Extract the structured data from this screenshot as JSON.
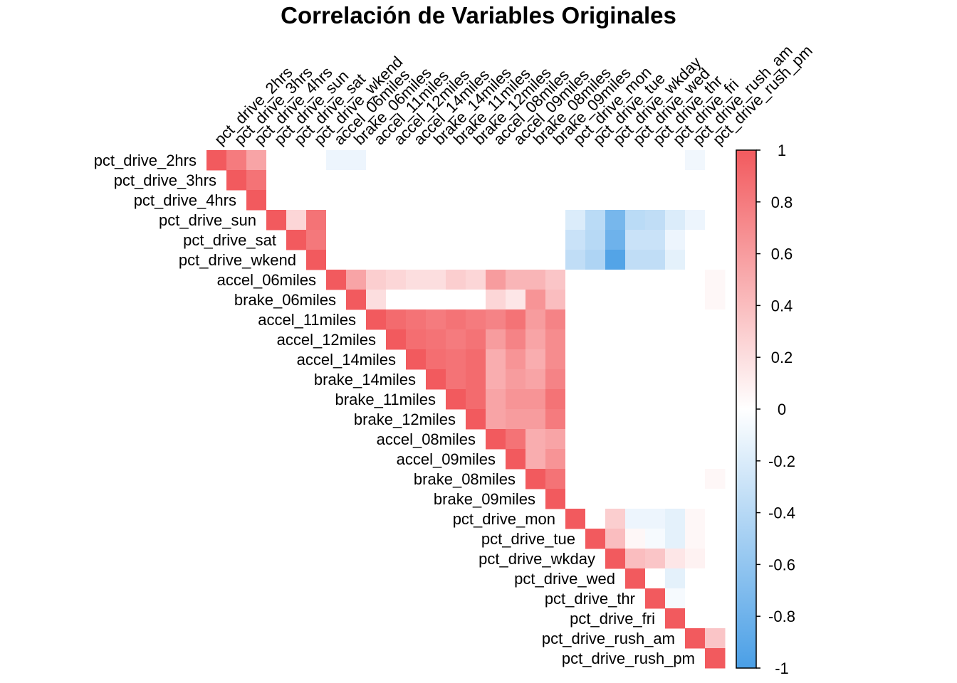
{
  "chart_data": {
    "type": "heatmap",
    "subtype": "correlation-upper-triangle",
    "title": "Correlación de Variables Originales",
    "variables": [
      "pct_drive_2hrs",
      "pct_drive_3hrs",
      "pct_drive_4hrs",
      "pct_drive_sun",
      "pct_drive_sat",
      "pct_drive_wkend",
      "accel_06miles",
      "brake_06miles",
      "accel_11miles",
      "accel_12miles",
      "accel_14miles",
      "brake_14miles",
      "brake_11miles",
      "brake_12miles",
      "accel_08miles",
      "accel_09miles",
      "brake_08miles",
      "brake_09miles",
      "pct_drive_mon",
      "pct_drive_tue",
      "pct_drive_wkday",
      "pct_drive_wed",
      "pct_drive_thr",
      "pct_drive_fri",
      "pct_drive_rush_am",
      "pct_drive_rush_pm"
    ],
    "value_range": [
      -1,
      1
    ],
    "colorbar": {
      "ticks": [
        1,
        0.8,
        0.6,
        0.4,
        0.2,
        0,
        -0.2,
        -0.4,
        -0.6,
        -0.8,
        -1
      ],
      "tick_labels": [
        "1",
        "0.8",
        "0.6",
        "0.4",
        "0.2",
        "0",
        "-0.2",
        "-0.4",
        "-0.6",
        "-0.8",
        "-1"
      ],
      "low_color": "#4A9FE6",
      "mid_color": "#FFFFFF",
      "high_color": "#F25A5E",
      "position": "right"
    },
    "notable_correlations": [
      {
        "row": "pct_drive_2hrs",
        "col": "pct_drive_3hrs",
        "value": 0.8
      },
      {
        "row": "pct_drive_2hrs",
        "col": "pct_drive_4hrs",
        "value": 0.55
      },
      {
        "row": "pct_drive_3hrs",
        "col": "pct_drive_4hrs",
        "value": 0.85
      },
      {
        "row": "pct_drive_2hrs",
        "col": "accel_06miles",
        "value": -0.1
      },
      {
        "row": "pct_drive_2hrs",
        "col": "brake_06miles",
        "value": -0.1
      },
      {
        "row": "pct_drive_2hrs",
        "col": "pct_drive_rush_am",
        "value": -0.08
      },
      {
        "row": "pct_drive_sun",
        "col": "pct_drive_sat",
        "value": 0.25
      },
      {
        "row": "pct_drive_sun",
        "col": "pct_drive_wkend",
        "value": 0.85
      },
      {
        "row": "pct_drive_sat",
        "col": "pct_drive_wkend",
        "value": 0.82
      },
      {
        "row": "pct_drive_sun",
        "col": "pct_drive_mon",
        "value": -0.2
      },
      {
        "row": "pct_drive_sun",
        "col": "pct_drive_tue",
        "value": -0.38
      },
      {
        "row": "pct_drive_sun",
        "col": "pct_drive_wkday",
        "value": -0.75
      },
      {
        "row": "pct_drive_sun",
        "col": "pct_drive_wed",
        "value": -0.38
      },
      {
        "row": "pct_drive_sun",
        "col": "pct_drive_thr",
        "value": -0.35
      },
      {
        "row": "pct_drive_sun",
        "col": "pct_drive_fri",
        "value": -0.2
      },
      {
        "row": "pct_drive_sun",
        "col": "pct_drive_rush_am",
        "value": -0.1
      },
      {
        "row": "pct_drive_sat",
        "col": "pct_drive_mon",
        "value": -0.3
      },
      {
        "row": "pct_drive_sat",
        "col": "pct_drive_tue",
        "value": -0.4
      },
      {
        "row": "pct_drive_sat",
        "col": "pct_drive_wkday",
        "value": -0.8
      },
      {
        "row": "pct_drive_sat",
        "col": "pct_drive_wed",
        "value": -0.3
      },
      {
        "row": "pct_drive_sat",
        "col": "pct_drive_thr",
        "value": -0.3
      },
      {
        "row": "pct_drive_sat",
        "col": "pct_drive_fri",
        "value": -0.1
      },
      {
        "row": "pct_drive_wkend",
        "col": "pct_drive_mon",
        "value": -0.35
      },
      {
        "row": "pct_drive_wkend",
        "col": "pct_drive_tue",
        "value": -0.45
      },
      {
        "row": "pct_drive_wkend",
        "col": "pct_drive_wkday",
        "value": -0.95
      },
      {
        "row": "pct_drive_wkend",
        "col": "pct_drive_wed",
        "value": -0.35
      },
      {
        "row": "pct_drive_wkend",
        "col": "pct_drive_thr",
        "value": -0.35
      },
      {
        "row": "pct_drive_wkend",
        "col": "pct_drive_fri",
        "value": -0.15
      },
      {
        "row": "accel_06miles",
        "col": "brake_06miles",
        "value": 0.55
      },
      {
        "row": "accel_06miles",
        "col": "accel_11miles",
        "value": 0.3
      },
      {
        "row": "accel_06miles",
        "col": "accel_12miles",
        "value": 0.25
      },
      {
        "row": "accel_06miles",
        "col": "accel_14miles",
        "value": 0.2
      },
      {
        "row": "accel_06miles",
        "col": "brake_14miles",
        "value": 0.2
      },
      {
        "row": "accel_06miles",
        "col": "brake_11miles",
        "value": 0.3
      },
      {
        "row": "accel_06miles",
        "col": "brake_12miles",
        "value": 0.25
      },
      {
        "row": "accel_06miles",
        "col": "accel_08miles",
        "value": 0.6
      },
      {
        "row": "accel_06miles",
        "col": "accel_09miles",
        "value": 0.45
      },
      {
        "row": "accel_06miles",
        "col": "brake_08miles",
        "value": 0.45
      },
      {
        "row": "accel_06miles",
        "col": "brake_09miles",
        "value": 0.35
      },
      {
        "row": "brake_06miles",
        "col": "accel_11miles",
        "value": 0.2
      },
      {
        "row": "brake_06miles",
        "col": "accel_08miles",
        "value": 0.25
      },
      {
        "row": "brake_06miles",
        "col": "accel_09miles",
        "value": 0.15
      },
      {
        "row": "brake_06miles",
        "col": "brake_08miles",
        "value": 0.65
      },
      {
        "row": "brake_06miles",
        "col": "brake_09miles",
        "value": 0.4
      },
      {
        "row": "accel_11miles",
        "col": "accel_12miles",
        "value": 0.9
      },
      {
        "row": "accel_11miles",
        "col": "accel_14miles",
        "value": 0.85
      },
      {
        "row": "accel_11miles",
        "col": "brake_14miles",
        "value": 0.8
      },
      {
        "row": "accel_11miles",
        "col": "brake_11miles",
        "value": 0.85
      },
      {
        "row": "accel_11miles",
        "col": "brake_12miles",
        "value": 0.8
      },
      {
        "row": "accel_11miles",
        "col": "accel_08miles",
        "value": 0.75
      },
      {
        "row": "accel_11miles",
        "col": "accel_09miles",
        "value": 0.85
      },
      {
        "row": "accel_11miles",
        "col": "brake_08miles",
        "value": 0.6
      },
      {
        "row": "accel_11miles",
        "col": "brake_09miles",
        "value": 0.75
      },
      {
        "row": "accel_12miles",
        "col": "accel_14miles",
        "value": 0.88
      },
      {
        "row": "accel_12miles",
        "col": "brake_14miles",
        "value": 0.85
      },
      {
        "row": "accel_12miles",
        "col": "brake_11miles",
        "value": 0.8
      },
      {
        "row": "accel_12miles",
        "col": "brake_12miles",
        "value": 0.85
      },
      {
        "row": "accel_12miles",
        "col": "accel_08miles",
        "value": 0.6
      },
      {
        "row": "accel_12miles",
        "col": "accel_09miles",
        "value": 0.75
      },
      {
        "row": "accel_12miles",
        "col": "brake_08miles",
        "value": 0.55
      },
      {
        "row": "accel_12miles",
        "col": "brake_09miles",
        "value": 0.7
      },
      {
        "row": "accel_14miles",
        "col": "brake_14miles",
        "value": 0.88
      },
      {
        "row": "accel_14miles",
        "col": "brake_11miles",
        "value": 0.85
      },
      {
        "row": "accel_14miles",
        "col": "brake_12miles",
        "value": 0.9
      },
      {
        "row": "accel_14miles",
        "col": "accel_08miles",
        "value": 0.5
      },
      {
        "row": "accel_14miles",
        "col": "accel_09miles",
        "value": 0.65
      },
      {
        "row": "accel_14miles",
        "col": "brake_08miles",
        "value": 0.5
      },
      {
        "row": "accel_14miles",
        "col": "brake_09miles",
        "value": 0.7
      },
      {
        "row": "brake_14miles",
        "col": "brake_11miles",
        "value": 0.85
      },
      {
        "row": "brake_14miles",
        "col": "brake_12miles",
        "value": 0.9
      },
      {
        "row": "brake_14miles",
        "col": "accel_08miles",
        "value": 0.5
      },
      {
        "row": "brake_14miles",
        "col": "accel_09miles",
        "value": 0.6
      },
      {
        "row": "brake_14miles",
        "col": "brake_08miles",
        "value": 0.55
      },
      {
        "row": "brake_14miles",
        "col": "brake_09miles",
        "value": 0.75
      },
      {
        "row": "brake_11miles",
        "col": "brake_12miles",
        "value": 0.9
      },
      {
        "row": "brake_11miles",
        "col": "accel_08miles",
        "value": 0.55
      },
      {
        "row": "brake_11miles",
        "col": "accel_09miles",
        "value": 0.65
      },
      {
        "row": "brake_11miles",
        "col": "brake_08miles",
        "value": 0.65
      },
      {
        "row": "brake_11miles",
        "col": "brake_09miles",
        "value": 0.85
      },
      {
        "row": "brake_12miles",
        "col": "accel_08miles",
        "value": 0.55
      },
      {
        "row": "brake_12miles",
        "col": "accel_09miles",
        "value": 0.6
      },
      {
        "row": "brake_12miles",
        "col": "brake_08miles",
        "value": 0.6
      },
      {
        "row": "brake_12miles",
        "col": "brake_09miles",
        "value": 0.8
      },
      {
        "row": "accel_08miles",
        "col": "accel_09miles",
        "value": 0.85
      },
      {
        "row": "accel_08miles",
        "col": "brake_08miles",
        "value": 0.5
      },
      {
        "row": "accel_08miles",
        "col": "brake_09miles",
        "value": 0.55
      },
      {
        "row": "accel_09miles",
        "col": "brake_08miles",
        "value": 0.5
      },
      {
        "row": "accel_09miles",
        "col": "brake_09miles",
        "value": 0.65
      },
      {
        "row": "brake_08miles",
        "col": "brake_09miles",
        "value": 0.85
      },
      {
        "row": "pct_drive_mon",
        "col": "pct_drive_wkday",
        "value": 0.3
      },
      {
        "row": "pct_drive_mon",
        "col": "pct_drive_wed",
        "value": -0.1
      },
      {
        "row": "pct_drive_mon",
        "col": "pct_drive_thr",
        "value": -0.1
      },
      {
        "row": "pct_drive_mon",
        "col": "pct_drive_fri",
        "value": -0.15
      },
      {
        "row": "pct_drive_mon",
        "col": "pct_drive_rush_am",
        "value": 0.05
      },
      {
        "row": "pct_drive_tue",
        "col": "pct_drive_wkday",
        "value": 0.4
      },
      {
        "row": "pct_drive_tue",
        "col": "pct_drive_wed",
        "value": 0.05
      },
      {
        "row": "pct_drive_tue",
        "col": "pct_drive_thr",
        "value": -0.05
      },
      {
        "row": "pct_drive_tue",
        "col": "pct_drive_fri",
        "value": -0.15
      },
      {
        "row": "pct_drive_tue",
        "col": "pct_drive_rush_am",
        "value": 0.05
      },
      {
        "row": "pct_drive_wkday",
        "col": "pct_drive_wed",
        "value": 0.4
      },
      {
        "row": "pct_drive_wkday",
        "col": "pct_drive_thr",
        "value": 0.35
      },
      {
        "row": "pct_drive_wkday",
        "col": "pct_drive_fri",
        "value": 0.15
      },
      {
        "row": "pct_drive_wkday",
        "col": "pct_drive_rush_am",
        "value": 0.08
      },
      {
        "row": "pct_drive_wed",
        "col": "pct_drive_fri",
        "value": -0.15
      },
      {
        "row": "pct_drive_thr",
        "col": "pct_drive_fri",
        "value": -0.05
      },
      {
        "row": "pct_drive_rush_am",
        "col": "pct_drive_rush_pm",
        "value": 0.35
      },
      {
        "row": "accel_06miles",
        "col": "pct_drive_rush_pm",
        "value": 0.05
      },
      {
        "row": "brake_06miles",
        "col": "pct_drive_rush_pm",
        "value": 0.05
      },
      {
        "row": "brake_08miles",
        "col": "pct_drive_rush_pm",
        "value": 0.05
      }
    ]
  }
}
